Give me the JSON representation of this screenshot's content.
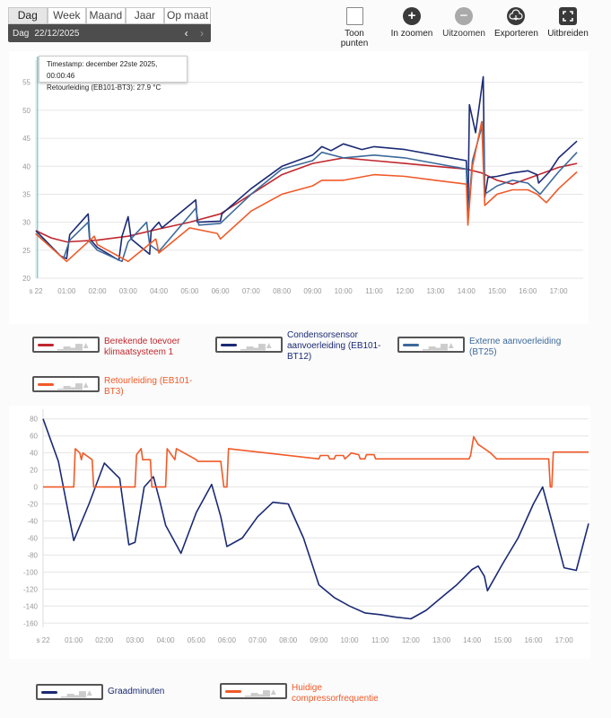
{
  "range_tabs": [
    "Dag",
    "Week",
    "Maand",
    "Jaar",
    "Op maat"
  ],
  "date_bar": {
    "label": "Dag",
    "date": "22/12/2025",
    "prev_icon": "chevron-left-icon",
    "next_icon": "chevron-right-icon"
  },
  "toolbar": {
    "show_points": "Toon punten",
    "zoom_in": "In zoomen",
    "zoom_out": "Uitzoomen",
    "export": "Exporteren",
    "expand": "Uitbreiden"
  },
  "tooltip": {
    "timestamp": "Timestamp: december 22ste 2025, 00:00:46",
    "value": "Retourleiding (EB101-BT3): 27.9 °C"
  },
  "colors": {
    "red": "#c0272d",
    "navy": "#1b2a74",
    "steel": "#3d6a9a",
    "orange": "#f05a28"
  },
  "chart_data": [
    {
      "type": "line",
      "title": "",
      "xlabel": "",
      "ylabel": "",
      "xlim": [
        0,
        17.8
      ],
      "ylim": [
        20,
        58
      ],
      "yticks": [
        20,
        25,
        30,
        35,
        40,
        45,
        50,
        55
      ],
      "xticks": [
        0,
        1,
        2,
        3,
        4,
        5,
        6,
        7,
        8,
        9,
        10,
        11,
        12,
        13,
        14,
        15,
        16,
        17
      ],
      "xtick_labels": [
        "s 22",
        "01:00",
        "02:00",
        "03:00",
        "04:00",
        "05:00",
        "06:00",
        "07:00",
        "08:00",
        "09:00",
        "10:00",
        "11:00",
        "12:00",
        "13:00",
        "14:00",
        "15:00",
        "16:00",
        "17:00"
      ],
      "series": [
        {
          "name": "Berekende toevoer klimaatsysteem 1",
          "color": "#c0272d",
          "x": [
            0,
            0.5,
            1,
            2,
            3,
            4,
            5,
            6,
            7,
            8,
            9,
            10,
            11,
            12,
            13,
            14,
            14.5,
            15,
            15.5,
            16,
            16.5,
            17,
            17.6
          ],
          "y": [
            28.5,
            27.2,
            26.5,
            26.8,
            27.5,
            28.8,
            30,
            31.5,
            35,
            38.5,
            40.5,
            41.5,
            41,
            40.5,
            40,
            39.5,
            38.8,
            37.5,
            36.8,
            37.8,
            38.8,
            39.8,
            40.5
          ]
        },
        {
          "name": "Condensorsensor aanvoerleiding (EB101-BT12)",
          "color": "#1b2a74",
          "x": [
            0,
            0.8,
            1,
            1.1,
            1.7,
            1.75,
            2,
            2.7,
            2.8,
            3,
            3.1,
            3.7,
            3.75,
            4,
            4.1,
            5.2,
            5.25,
            6,
            6.05,
            7,
            8,
            9,
            9.3,
            9.6,
            10,
            10.6,
            11,
            12,
            13,
            14,
            14.05,
            14.1,
            14.3,
            14.55,
            14.6,
            14.7,
            15,
            15.5,
            16,
            16.3,
            16.35,
            16.7,
            17,
            17.6
          ],
          "y": [
            28.5,
            24,
            23.5,
            27.8,
            31.5,
            27,
            25.5,
            23.2,
            27.5,
            31,
            27,
            24.3,
            28.5,
            30,
            29,
            34,
            30,
            30.2,
            31.5,
            36,
            40,
            42,
            43.5,
            42.8,
            44,
            43,
            43.5,
            43,
            42,
            41,
            31,
            51,
            46,
            56,
            34.5,
            38,
            38.2,
            38.8,
            39.2,
            38.5,
            37,
            39,
            41.5,
            44.5
          ]
        },
        {
          "name": "Externe aanvoerleiding (BT25)",
          "color": "#3d6a9a",
          "x": [
            0,
            0.9,
            1.1,
            1.7,
            1.75,
            2,
            2.8,
            3,
            3.6,
            3.7,
            4,
            5.2,
            5.3,
            6,
            7,
            8,
            9,
            9.3,
            10,
            11,
            12,
            13,
            14,
            14.05,
            14.2,
            14.55,
            14.6,
            15,
            15.5,
            16,
            16.3,
            16.4,
            17,
            17.6
          ],
          "y": [
            28,
            23.5,
            26.8,
            30,
            26.5,
            25,
            23,
            26.5,
            30,
            26,
            24.8,
            32.5,
            29.5,
            29.8,
            35,
            39.5,
            41,
            42.5,
            41.5,
            42,
            41.5,
            40.5,
            39.5,
            31,
            41,
            48,
            35,
            36.5,
            37.5,
            37,
            35.5,
            35,
            39,
            42.5
          ]
        },
        {
          "name": "Retourleiding (EB101-BT3)",
          "color": "#f05a28",
          "x": [
            0,
            1,
            1.9,
            2,
            3,
            3.9,
            4,
            5,
            5.9,
            6,
            7,
            8,
            9,
            9.3,
            10,
            11,
            12,
            13,
            14,
            14.05,
            14.2,
            14.5,
            14.6,
            15,
            15.5,
            16,
            16.3,
            16.6,
            17,
            17.6
          ],
          "y": [
            27.9,
            23,
            27.5,
            26,
            23,
            27,
            24.5,
            29,
            28,
            27,
            32,
            35,
            36.5,
            37.5,
            37.5,
            38.5,
            38.2,
            37.5,
            36.8,
            29.5,
            40,
            48,
            33,
            35,
            35.8,
            35.8,
            35,
            33.5,
            36,
            39
          ]
        }
      ],
      "legend": "bottom"
    },
    {
      "type": "line",
      "title": "",
      "xlabel": "",
      "ylabel": "",
      "xlim": [
        0,
        17.8
      ],
      "ylim": [
        -165,
        85
      ],
      "yticks": [
        -160,
        -140,
        -120,
        -100,
        -80,
        -60,
        -40,
        -20,
        0,
        20,
        40,
        60,
        80
      ],
      "xticks": [
        0,
        1,
        2,
        3,
        4,
        5,
        6,
        7,
        8,
        9,
        10,
        11,
        12,
        13,
        14,
        15,
        16,
        17
      ],
      "xtick_labels": [
        "s 22",
        "01:00",
        "02:00",
        "03:00",
        "04:00",
        "05:00",
        "06:00",
        "07:00",
        "08:00",
        "09:00",
        "10:00",
        "11:00",
        "12:00",
        "13:00",
        "14:00",
        "15:00",
        "16:00",
        "17:00"
      ],
      "series": [
        {
          "name": "Graadminuten",
          "color": "#1b2a74",
          "x": [
            0,
            0.5,
            1,
            1.5,
            2,
            2.5,
            2.8,
            3,
            3.3,
            3.6,
            3.8,
            4,
            4.5,
            5,
            5.5,
            5.8,
            6,
            6.5,
            7,
            7.5,
            8,
            8.5,
            9,
            9.5,
            10,
            10.5,
            11,
            11.5,
            12,
            12.5,
            13,
            13.5,
            14,
            14.2,
            14.4,
            14.5,
            15,
            15.5,
            16,
            16.3,
            16.6,
            17,
            17.4,
            17.8
          ],
          "y": [
            80,
            30,
            -63,
            -20,
            28,
            10,
            -68,
            -65,
            0,
            12,
            -15,
            -45,
            -78,
            -30,
            3,
            -35,
            -70,
            -60,
            -35,
            -18,
            -20,
            -60,
            -115,
            -130,
            -140,
            -148,
            -150,
            -153,
            -155,
            -145,
            -130,
            -115,
            -97,
            -93,
            -105,
            -122,
            -90,
            -60,
            -20,
            0,
            -40,
            -95,
            -98,
            -43
          ]
        },
        {
          "name": "Huidige compressorfrequentie",
          "color": "#f05a28",
          "x": [
            0,
            1,
            1.05,
            1.2,
            1.25,
            1.3,
            1.6,
            1.65,
            3,
            3.05,
            3.2,
            3.25,
            3.5,
            3.55,
            4,
            4.05,
            4.3,
            4.35,
            5,
            5.05,
            5.8,
            5.9,
            6,
            6.05,
            9,
            9.05,
            9.3,
            9.35,
            9.5,
            9.55,
            9.8,
            9.85,
            10,
            10.05,
            10.3,
            10.35,
            10.5,
            10.55,
            10.8,
            10.85,
            11,
            11.05,
            12,
            13.9,
            13.95,
            14.05,
            14.2,
            14.4,
            14.6,
            14.8,
            15,
            15.05,
            16.5,
            16.55,
            16.6,
            16.65,
            17.8
          ],
          "y": [
            0,
            0,
            45,
            40,
            32,
            40,
            32,
            0,
            0,
            38,
            45,
            32,
            32,
            0,
            0,
            45,
            32,
            45,
            32,
            30,
            30,
            0,
            0,
            45,
            33,
            37,
            37,
            33,
            33,
            37,
            37,
            33,
            38,
            40,
            38,
            33,
            33,
            38,
            38,
            33,
            33,
            33,
            33,
            33,
            37,
            59,
            50,
            45,
            40,
            33,
            33,
            33,
            33,
            0,
            0,
            41,
            41
          ]
        }
      ],
      "legend": "bottom"
    }
  ]
}
